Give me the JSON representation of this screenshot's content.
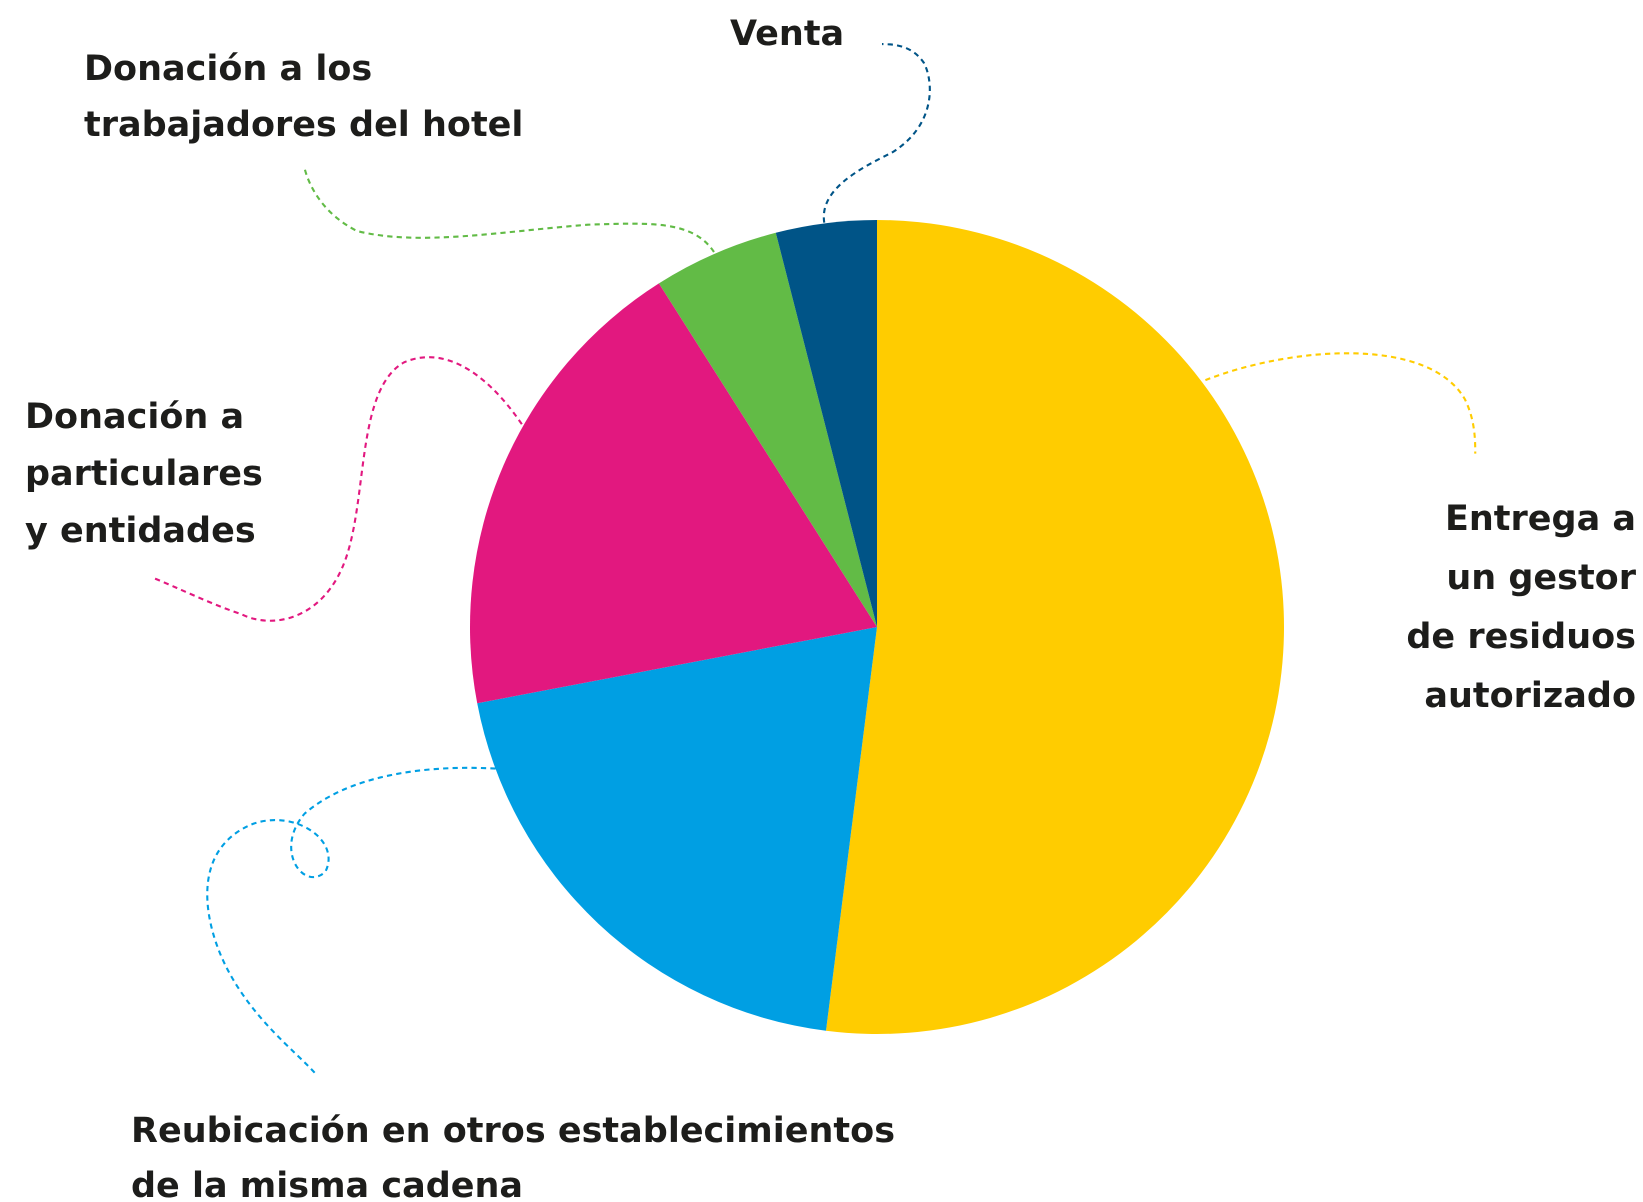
{
  "chart_data": {
    "type": "pie",
    "categories": [
      [
        "Entrega a",
        "un gestor",
        "de residuos",
        "autorizado"
      ],
      [
        "Reubicación en otros establecimientos",
        "de la misma cadena"
      ],
      [
        "Donación a",
        "particulares",
        "y entidades"
      ],
      [
        "Donación a los",
        "trabajadores del hotel"
      ],
      [
        "Venta"
      ]
    ],
    "values": [
      52,
      20,
      19,
      5,
      4
    ],
    "colors": [
      "#ffcc00",
      "#009fe3",
      "#e2187f",
      "#62bb46",
      "#005487"
    ]
  }
}
